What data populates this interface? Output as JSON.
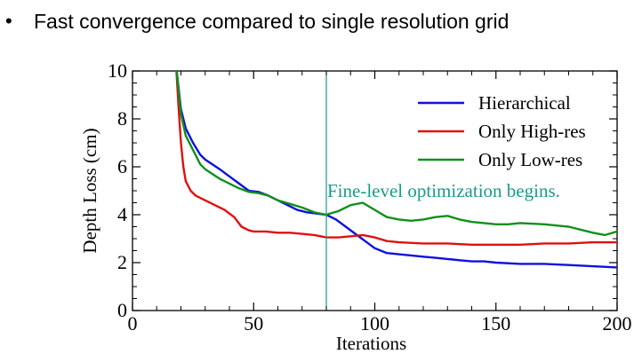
{
  "slide": {
    "bullet_symbol": "•",
    "bullet_text": "Fast convergence compared to single resolution grid"
  },
  "chart_data": {
    "type": "line",
    "title": "",
    "xlabel": "Iterations",
    "ylabel": "Depth Loss (cm)",
    "xlim": [
      0,
      200
    ],
    "ylim": [
      0,
      10
    ],
    "xticks": [
      0,
      50,
      100,
      150,
      200
    ],
    "yticks": [
      0,
      2,
      4,
      6,
      8,
      10
    ],
    "grid": false,
    "legend_position": "top-right",
    "vline": {
      "x": 80,
      "color": "#1a9a8a",
      "label": "Fine-level optimization begins."
    },
    "series": [
      {
        "name": "Hierarchical",
        "color": "#1010e0",
        "x": [
          18,
          20,
          22,
          25,
          28,
          30,
          33,
          36,
          40,
          44,
          48,
          52,
          56,
          60,
          64,
          68,
          72,
          76,
          80,
          84,
          88,
          92,
          96,
          100,
          105,
          110,
          115,
          120,
          125,
          130,
          135,
          140,
          145,
          150,
          160,
          170,
          180,
          190,
          200
        ],
        "y": [
          10.2,
          8.4,
          7.6,
          7.0,
          6.5,
          6.3,
          6.1,
          5.9,
          5.6,
          5.3,
          5.0,
          4.95,
          4.8,
          4.6,
          4.4,
          4.2,
          4.1,
          4.05,
          4.0,
          3.8,
          3.5,
          3.2,
          2.9,
          2.6,
          2.4,
          2.35,
          2.3,
          2.25,
          2.2,
          2.15,
          2.1,
          2.05,
          2.05,
          2.0,
          1.95,
          1.95,
          1.9,
          1.85,
          1.8
        ]
      },
      {
        "name": "Only High-res",
        "color": "#e01010",
        "x": [
          18,
          19,
          20,
          21,
          22,
          24,
          26,
          30,
          34,
          38,
          42,
          45,
          48,
          50,
          55,
          60,
          65,
          70,
          75,
          80,
          85,
          90,
          95,
          100,
          105,
          110,
          120,
          130,
          140,
          150,
          160,
          170,
          180,
          190,
          200
        ],
        "y": [
          10.2,
          8.5,
          7.0,
          6.0,
          5.4,
          5.0,
          4.8,
          4.6,
          4.4,
          4.2,
          3.9,
          3.5,
          3.35,
          3.3,
          3.3,
          3.25,
          3.25,
          3.2,
          3.15,
          3.05,
          3.05,
          3.1,
          3.15,
          3.05,
          2.9,
          2.85,
          2.8,
          2.8,
          2.75,
          2.75,
          2.75,
          2.8,
          2.8,
          2.85,
          2.85
        ]
      },
      {
        "name": "Only Low-res",
        "color": "#10901a",
        "x": [
          18,
          20,
          22,
          25,
          28,
          30,
          33,
          36,
          40,
          44,
          48,
          52,
          56,
          60,
          65,
          70,
          75,
          80,
          85,
          90,
          95,
          100,
          105,
          110,
          115,
          120,
          125,
          130,
          135,
          140,
          145,
          150,
          155,
          160,
          170,
          180,
          190,
          195,
          200
        ],
        "y": [
          10.2,
          8.2,
          7.3,
          6.7,
          6.1,
          5.9,
          5.7,
          5.5,
          5.3,
          5.1,
          4.95,
          4.9,
          4.8,
          4.6,
          4.45,
          4.3,
          4.1,
          4.0,
          4.15,
          4.4,
          4.5,
          4.2,
          3.9,
          3.8,
          3.75,
          3.8,
          3.9,
          3.95,
          3.8,
          3.7,
          3.65,
          3.6,
          3.6,
          3.65,
          3.6,
          3.5,
          3.25,
          3.15,
          3.3
        ]
      }
    ]
  }
}
